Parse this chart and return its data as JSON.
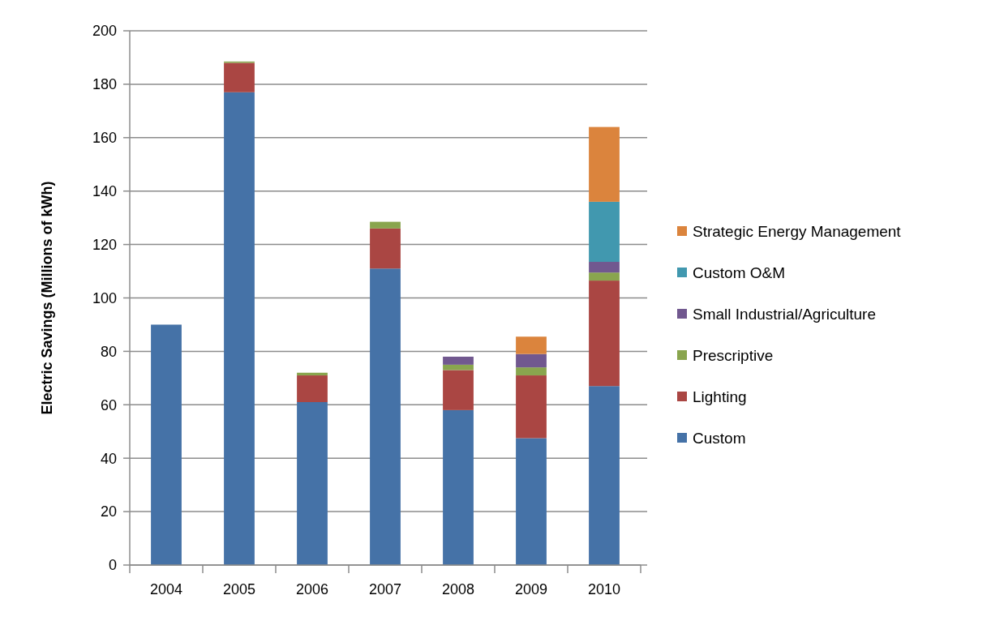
{
  "chart_data": {
    "type": "bar",
    "stacked": true,
    "ylabel": "Electric Savings (Millions of kWh)",
    "categories": [
      "2004",
      "2005",
      "2006",
      "2007",
      "2008",
      "2009",
      "2010"
    ],
    "series": [
      {
        "name": "Custom",
        "color": "#4572a7",
        "values": [
          90,
          177,
          61,
          111,
          58,
          47.5,
          67
        ]
      },
      {
        "name": "Lighting",
        "color": "#aa4643",
        "values": [
          null,
          11,
          10,
          15,
          15,
          23.5,
          39.5
        ]
      },
      {
        "name": "Prescriptive",
        "color": "#89a54e",
        "values": [
          null,
          0.5,
          1,
          2.5,
          2,
          3,
          3
        ]
      },
      {
        "name": "Small Industrial/Agriculture",
        "color": "#71588f",
        "values": [
          null,
          null,
          null,
          null,
          3,
          5,
          4
        ]
      },
      {
        "name": "Custom O&M",
        "color": "#4198af",
        "values": [
          null,
          null,
          null,
          null,
          null,
          null,
          22.5
        ]
      },
      {
        "name": "Strategic Energy Management",
        "color": "#db843d",
        "values": [
          null,
          null,
          null,
          null,
          null,
          6.5,
          28
        ]
      }
    ],
    "ylim": [
      0,
      200
    ],
    "yticks": [
      0,
      20,
      40,
      60,
      80,
      100,
      120,
      140,
      160,
      180,
      200
    ],
    "grid": "y",
    "legend": "right"
  }
}
